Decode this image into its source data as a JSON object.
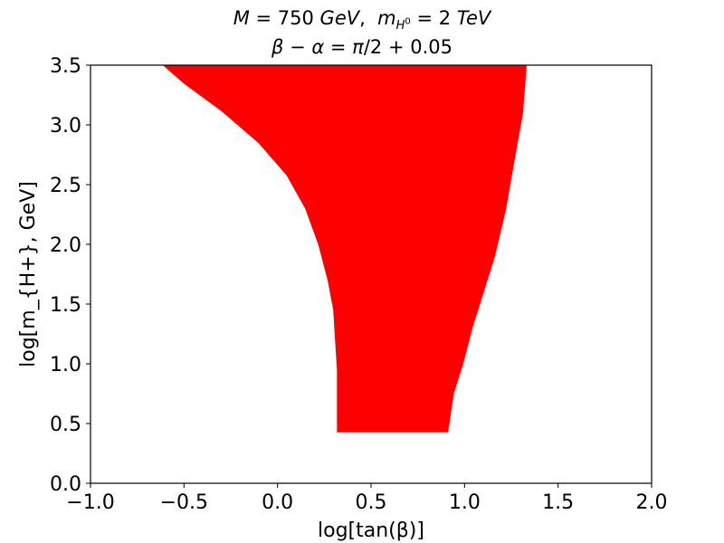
{
  "chart_data": {
    "type": "area",
    "title_line1": "M = 750 GeV,  m_{H^0} = 2 TeV",
    "title_line2": "β − α = π/2 + 0.05",
    "xlabel": "log[tan(β)]",
    "ylabel": "log[m_{H+}, GeV]",
    "xlim": [
      -1.0,
      2.0
    ],
    "ylim": [
      0.0,
      3.5
    ],
    "xticks": [
      "−1.0",
      "−0.5",
      "0.0",
      "0.5",
      "1.0",
      "1.5",
      "2.0"
    ],
    "yticks": [
      "0.0",
      "0.5",
      "1.0",
      "1.5",
      "2.0",
      "2.5",
      "3.0",
      "3.5"
    ],
    "grid": false,
    "fill_color": "#ff0000",
    "region": {
      "y_min": 0.43,
      "y_max": 3.5,
      "left_edge": [
        {
          "x": -0.61,
          "y": 3.5
        },
        {
          "x": -0.5,
          "y": 3.35
        },
        {
          "x": -0.3,
          "y": 3.12
        },
        {
          "x": -0.1,
          "y": 2.85
        },
        {
          "x": 0.05,
          "y": 2.58
        },
        {
          "x": 0.15,
          "y": 2.3
        },
        {
          "x": 0.22,
          "y": 2.0
        },
        {
          "x": 0.27,
          "y": 1.7
        },
        {
          "x": 0.3,
          "y": 1.45
        },
        {
          "x": 0.31,
          "y": 1.2
        },
        {
          "x": 0.32,
          "y": 0.95
        },
        {
          "x": 0.32,
          "y": 0.43
        }
      ],
      "right_edge": [
        {
          "x": 0.91,
          "y": 0.43
        },
        {
          "x": 0.94,
          "y": 0.75
        },
        {
          "x": 0.99,
          "y": 1.0
        },
        {
          "x": 1.04,
          "y": 1.3
        },
        {
          "x": 1.1,
          "y": 1.6
        },
        {
          "x": 1.16,
          "y": 1.9
        },
        {
          "x": 1.22,
          "y": 2.3
        },
        {
          "x": 1.27,
          "y": 2.75
        },
        {
          "x": 1.31,
          "y": 3.1
        },
        {
          "x": 1.33,
          "y": 3.5
        }
      ]
    }
  }
}
